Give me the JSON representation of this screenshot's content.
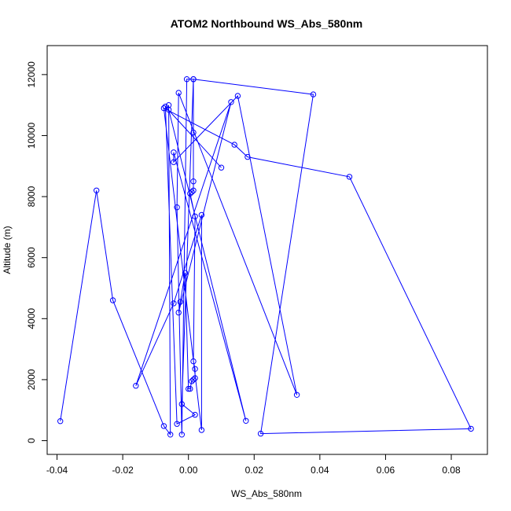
{
  "chart_data": {
    "type": "line",
    "title": "ATOM2 Northbound WS_Abs_580nm",
    "xlabel": "WS_Abs_580nm",
    "ylabel": "Altitude (m)",
    "xlim": [
      -0.043,
      0.091
    ],
    "ylim": [
      -450,
      12950
    ],
    "x_ticks": [
      -0.04,
      -0.02,
      0.0,
      0.02,
      0.04,
      0.06,
      0.08
    ],
    "x_tick_labels": [
      "-0.04",
      "-0.02",
      "0.00",
      "0.02",
      "0.04",
      "0.06",
      "0.08"
    ],
    "y_ticks": [
      0,
      2000,
      4000,
      6000,
      8000,
      10000,
      12000
    ],
    "y_tick_labels": [
      "0",
      "2000",
      "4000",
      "6000",
      "8000",
      "10000",
      "12000"
    ],
    "grid": false,
    "series": [
      {
        "color": "#0000ff",
        "marker": "open-circle",
        "points": [
          [
            -0.039,
            640
          ],
          [
            -0.028,
            8200
          ],
          [
            -0.023,
            4600
          ],
          [
            -0.0075,
            480
          ],
          [
            -0.0055,
            200
          ],
          [
            -0.006,
            11000
          ],
          [
            -0.006,
            10850
          ],
          [
            0.0175,
            650
          ],
          [
            -0.0045,
            9450
          ],
          [
            -0.0045,
            9130
          ],
          [
            0.015,
            11300
          ],
          [
            0.033,
            1500
          ],
          [
            -0.003,
            11400
          ],
          [
            -0.0035,
            7650
          ],
          [
            -0.002,
            200
          ],
          [
            -0.0005,
            11850
          ],
          [
            0.0015,
            11850
          ],
          [
            0.0015,
            10100
          ],
          [
            0.0015,
            8500
          ],
          [
            0.0015,
            8200
          ],
          [
            0.001,
            8150
          ],
          [
            0.0005,
            8100
          ],
          [
            0.002,
            7350
          ],
          [
            0.0015,
            2600
          ],
          [
            0.002,
            2350
          ],
          [
            0.002,
            2050
          ],
          [
            0.0015,
            2000
          ],
          [
            0.001,
            1950
          ],
          [
            0.0005,
            1700
          ],
          [
            0.0,
            1700
          ],
          [
            -0.001,
            5500
          ],
          [
            -0.0025,
            4550
          ],
          [
            -0.003,
            4200
          ],
          [
            0.013,
            11100
          ],
          [
            -0.016,
            1800
          ],
          [
            -0.0045,
            4500
          ],
          [
            0.004,
            7400
          ],
          [
            0.004,
            350
          ],
          [
            -0.0075,
            10900
          ],
          [
            0.014,
            9700
          ],
          [
            0.018,
            9300
          ],
          [
            0.049,
            8650
          ],
          [
            0.086,
            390
          ],
          [
            0.022,
            230
          ],
          [
            0.038,
            11350
          ],
          [
            0.0015,
            11850
          ],
          [
            -0.002,
            1200
          ],
          [
            0.002,
            850
          ],
          [
            -0.0035,
            550
          ],
          [
            -0.007,
            10950
          ],
          [
            0.01,
            8950
          ]
        ]
      }
    ]
  }
}
